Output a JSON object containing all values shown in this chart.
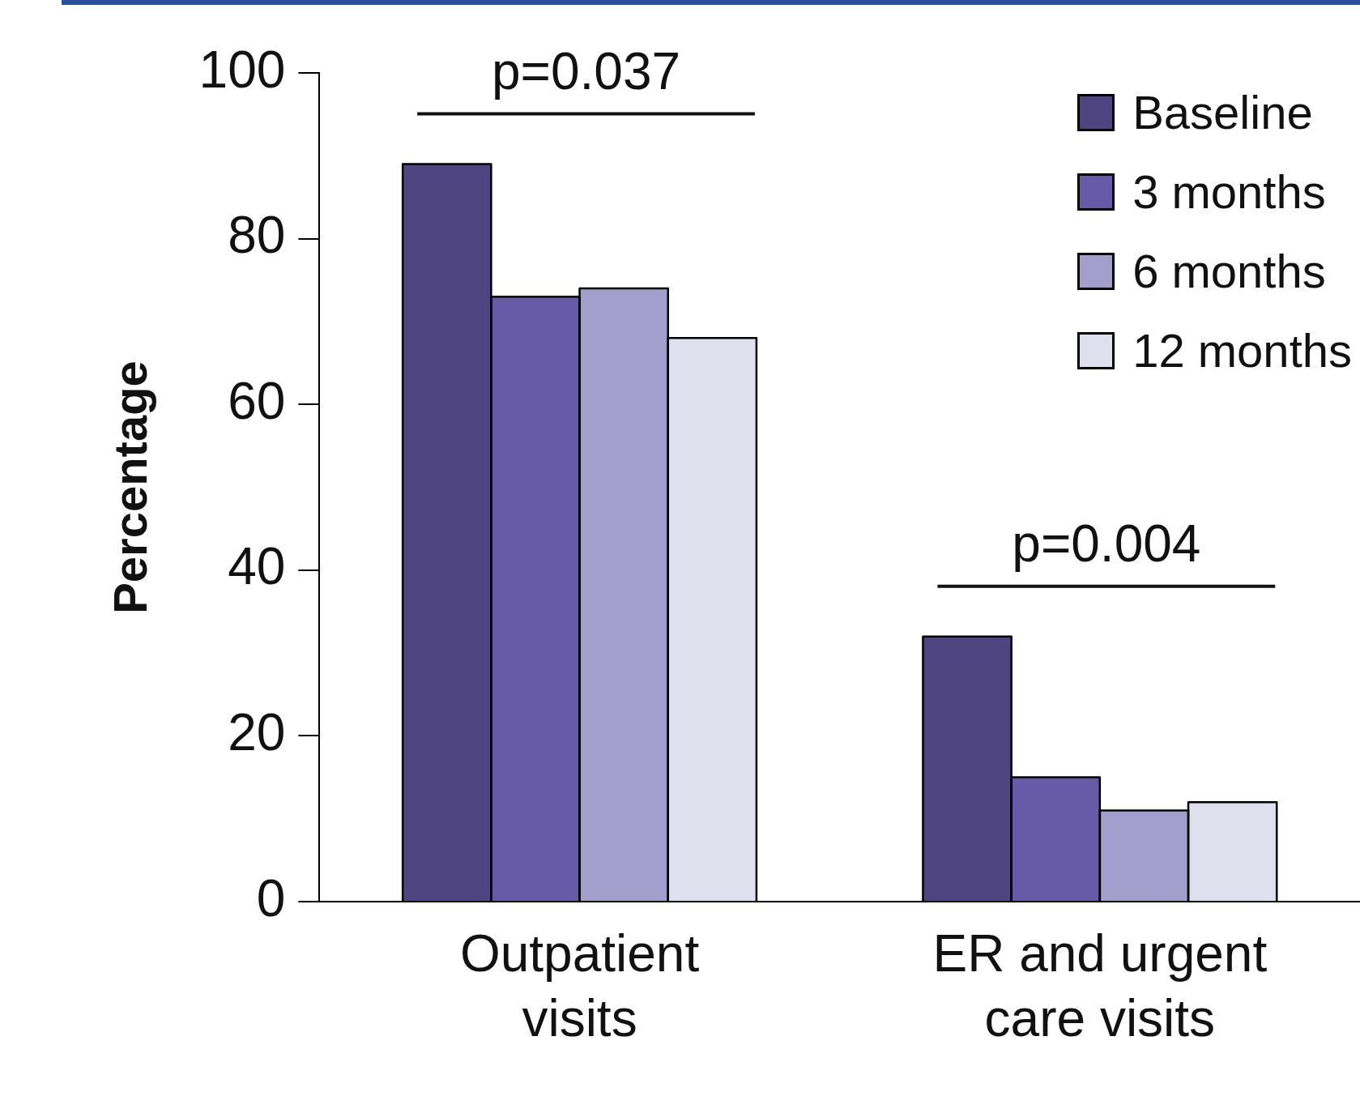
{
  "chart_data": {
    "type": "bar",
    "ylabel": "Percentage",
    "categories": [
      "Outpatient visits",
      "ER and urgent care visits"
    ],
    "series": [
      {
        "name": "Baseline",
        "color": "#4e4580",
        "values": [
          89,
          32
        ]
      },
      {
        "name": "3 months",
        "color": "#675aa6",
        "values": [
          73,
          15
        ]
      },
      {
        "name": "6 months",
        "color": "#a39ecb",
        "values": [
          74,
          11
        ]
      },
      {
        "name": "12 months",
        "color": "#e0dfed",
        "values": [
          68,
          12
        ]
      }
    ],
    "ylim": [
      0,
      100
    ],
    "yticks": [
      0,
      20,
      40,
      60,
      80,
      100
    ],
    "grid": false,
    "legend": "top right",
    "annotations": [
      "p=0.037",
      "p=0.004"
    ]
  }
}
